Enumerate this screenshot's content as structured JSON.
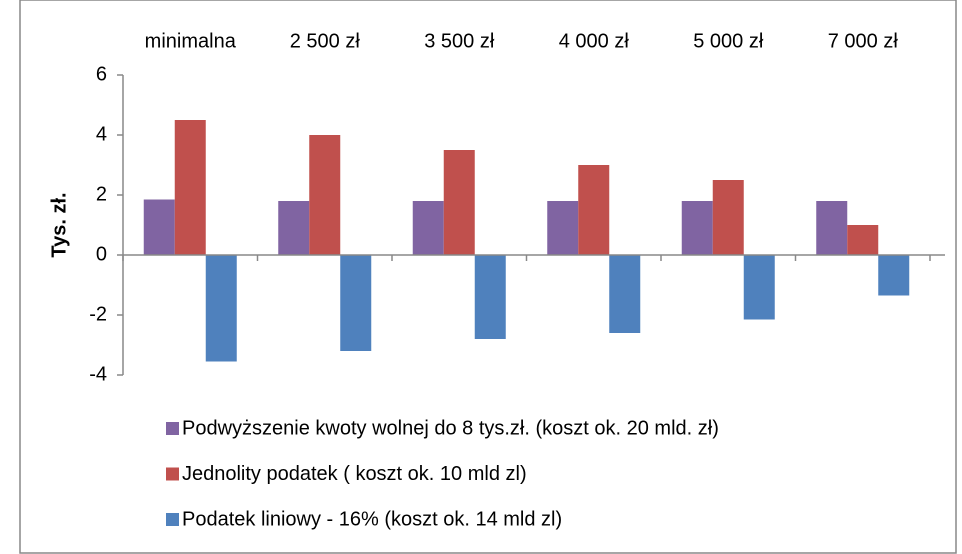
{
  "chart_data": {
    "type": "bar",
    "categories": [
      "minimalna",
      "2 500 zł",
      "3 500 zł",
      "4 000 zł",
      "5 000 zł",
      "7 000 zł"
    ],
    "ylabel": "Tys. zł.",
    "ylim": [
      -4,
      6
    ],
    "yticks": [
      -4,
      -2,
      0,
      2,
      4,
      6
    ],
    "grid": false,
    "legend": "bottom",
    "series": [
      {
        "name": "Podwyższenie kwoty wolnej do 8 tys.zł. (koszt ok. 20 mld. zł)",
        "color": "#8064a2",
        "values": [
          1.85,
          1.8,
          1.8,
          1.8,
          1.8,
          1.8
        ]
      },
      {
        "name": "Jednolity podatek ( koszt ok. 10 mld zl)",
        "color": "#c0504d",
        "values": [
          4.5,
          4.0,
          3.5,
          3.0,
          2.5,
          1.0
        ]
      },
      {
        "name": "Podatek liniowy - 16%  (koszt ok. 14 mld zl)",
        "color": "#4f81bd",
        "values": [
          -3.55,
          -3.2,
          -2.8,
          -2.6,
          -2.15,
          -1.35
        ]
      }
    ]
  }
}
